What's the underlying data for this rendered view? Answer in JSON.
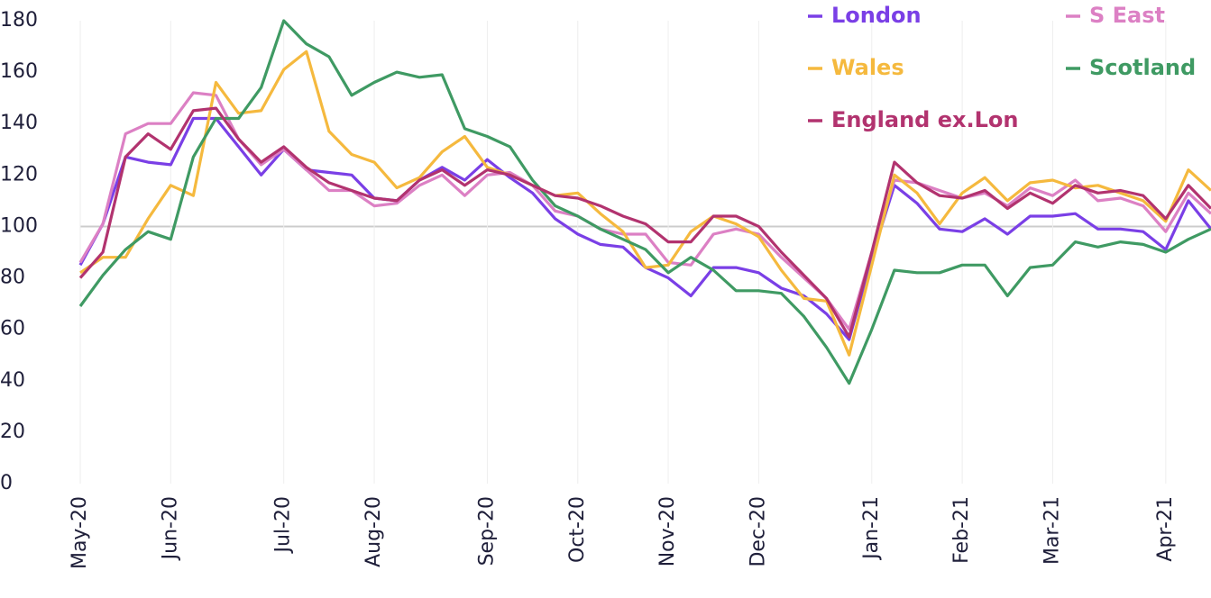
{
  "chart_data": {
    "type": "line",
    "categories": [
      "May-20",
      null,
      null,
      null,
      "Jun-20",
      null,
      null,
      null,
      null,
      "Jul-20",
      null,
      null,
      null,
      "Aug-20",
      null,
      null,
      null,
      null,
      "Sep-20",
      null,
      null,
      null,
      "Oct-20",
      null,
      null,
      null,
      "Nov-20",
      null,
      null,
      null,
      "Dec-20",
      null,
      null,
      null,
      null,
      "Jan-21",
      null,
      null,
      null,
      "Feb-21",
      null,
      null,
      null,
      "Mar-21",
      null,
      null,
      null,
      null,
      "Apr-21",
      null,
      null
    ],
    "series": [
      {
        "name": "London",
        "color": "#7a3fe6",
        "values": [
          85,
          101,
          127,
          125,
          124,
          142,
          142,
          131,
          120,
          130,
          122,
          121,
          120,
          111,
          110,
          118,
          123,
          118,
          126,
          119,
          113,
          103,
          97,
          93,
          92,
          84,
          80,
          73,
          84,
          84,
          82,
          76,
          73,
          66,
          56,
          88,
          116,
          109,
          99,
          98,
          103,
          97,
          104,
          104,
          105,
          99,
          99,
          98,
          91,
          110,
          99
        ]
      },
      {
        "name": "S East",
        "color": "#dc80c4",
        "values": [
          86,
          101,
          136,
          140,
          140,
          152,
          151,
          134,
          124,
          130,
          122,
          114,
          114,
          108,
          109,
          116,
          120,
          112,
          120,
          121,
          116,
          106,
          104,
          99,
          97,
          97,
          86,
          85,
          97,
          99,
          97,
          88,
          80,
          72,
          60,
          90,
          118,
          117,
          114,
          111,
          113,
          108,
          115,
          112,
          118,
          110,
          111,
          108,
          98,
          113,
          105
        ]
      },
      {
        "name": "Wales",
        "color": "#f5b93e",
        "values": [
          82,
          88,
          88,
          103,
          116,
          112,
          156,
          144,
          145,
          161,
          168,
          137,
          128,
          125,
          115,
          119,
          129,
          135,
          123,
          120,
          116,
          112,
          113,
          105,
          98,
          84,
          85,
          98,
          104,
          101,
          96,
          83,
          72,
          71,
          50,
          85,
          120,
          113,
          101,
          113,
          119,
          110,
          117,
          118,
          115,
          116,
          113,
          110,
          102,
          122,
          114
        ]
      },
      {
        "name": "Scotland",
        "color": "#3f9a63",
        "values": [
          69,
          81,
          91,
          98,
          95,
          127,
          142,
          142,
          154,
          180,
          171,
          166,
          151,
          156,
          160,
          158,
          159,
          138,
          135,
          131,
          118,
          108,
          104,
          99,
          95,
          91,
          82,
          88,
          83,
          75,
          75,
          74,
          65,
          53,
          39,
          60,
          83,
          82,
          82,
          85,
          85,
          73,
          84,
          85,
          94,
          92,
          94,
          93,
          90,
          95,
          99
        ]
      },
      {
        "name": "England ex.Lon",
        "color": "#b2336f",
        "values": [
          80,
          90,
          127,
          136,
          130,
          145,
          146,
          134,
          125,
          131,
          123,
          117,
          114,
          111,
          110,
          118,
          122,
          116,
          122,
          120,
          116,
          112,
          111,
          108,
          104,
          101,
          94,
          94,
          104,
          104,
          100,
          90,
          81,
          72,
          57,
          90,
          125,
          117,
          112,
          111,
          114,
          107,
          113,
          109,
          116,
          113,
          114,
          112,
          103,
          116,
          107
        ]
      }
    ],
    "ylim": [
      0,
      180
    ],
    "yticks": [
      0,
      20,
      40,
      60,
      80,
      100,
      120,
      140,
      160,
      180
    ],
    "reference_line": 100,
    "legend": "top-right"
  }
}
